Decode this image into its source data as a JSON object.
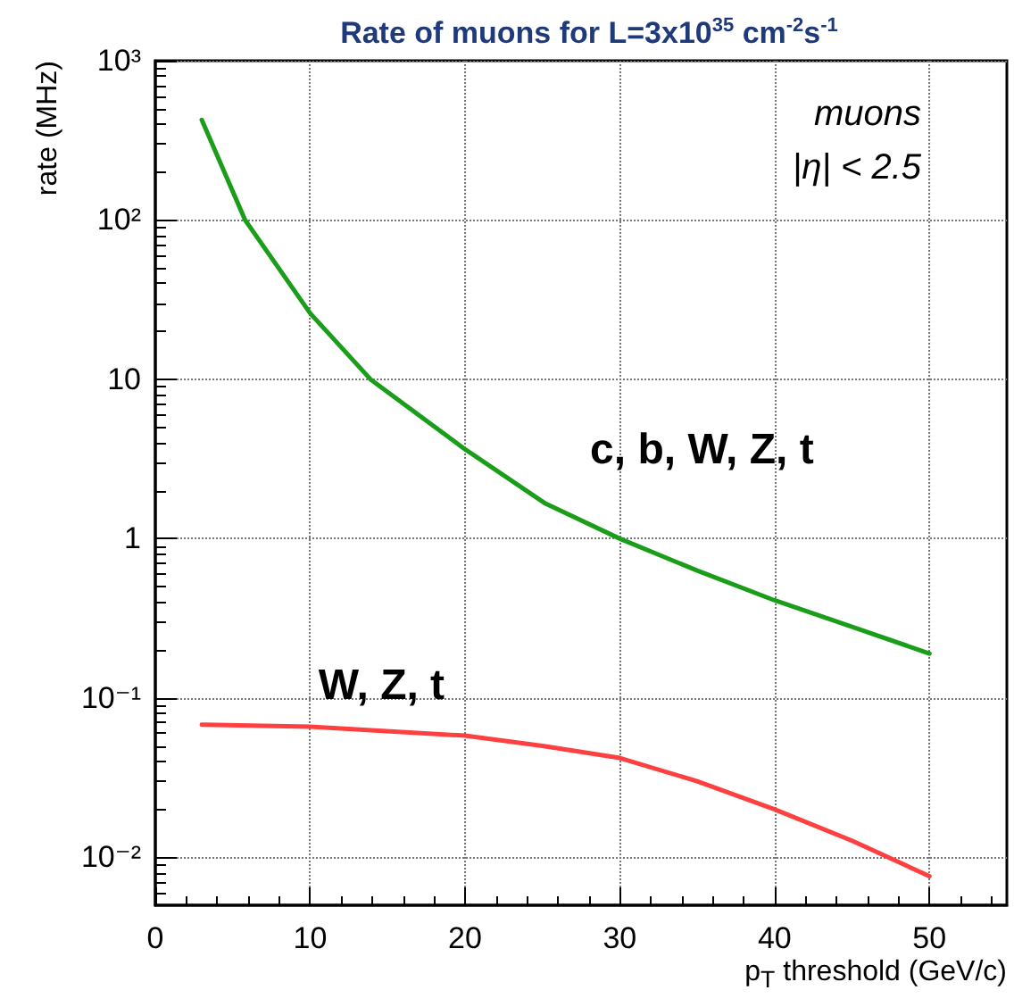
{
  "chart_data": {
    "type": "line",
    "title": "Rate of muons for L=3x10$^{35}$ cm$^{-2}$s$^{-1}$",
    "xlabel": "p$_{T}$ threshold (GeV/c)",
    "ylabel": "rate (MHz)",
    "annotations": [
      "muons",
      "|η| < 2.5"
    ],
    "series": [
      {
        "name": "c, b, W, Z, t",
        "color": "#1a9e1a",
        "x": [
          3,
          5.8,
          10,
          13.9,
          19.9,
          25.2,
          30,
          35,
          40,
          45,
          50
        ],
        "values": [
          425,
          100,
          26,
          10,
          3.7,
          1.66,
          1,
          0.63,
          0.41,
          0.28,
          0.19
        ]
      },
      {
        "name": "W, Z, t",
        "color": "#ff4040",
        "x": [
          3,
          10,
          20,
          25,
          30,
          35,
          40,
          45,
          50
        ],
        "values": [
          0.068,
          0.066,
          0.058,
          0.05,
          0.042,
          0.03,
          0.02,
          0.0127,
          0.0076
        ]
      }
    ],
    "xlim": [
      0,
      55
    ],
    "xticks": [
      0,
      10,
      20,
      30,
      40,
      50
    ],
    "ylim": [
      0.005,
      1000
    ],
    "yticks": [
      {
        "value": 0.01,
        "label": "10⁻²"
      },
      {
        "value": 0.1,
        "label": "10⁻¹"
      },
      1,
      10,
      {
        "value": 100,
        "label": "10²"
      },
      {
        "value": 1000,
        "label": "10³"
      }
    ],
    "log": "y",
    "grid": true,
    "legend": false,
    "marker": "none",
    "line_style": "solid"
  }
}
